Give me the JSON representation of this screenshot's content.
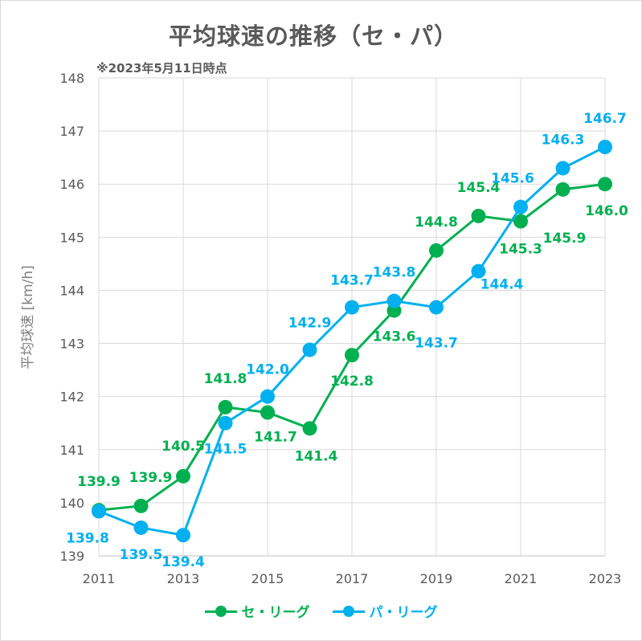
{
  "chart_data": {
    "type": "line",
    "title": "平均球速の推移（セ・パ）",
    "subtitle": "※2023年5月11日時点",
    "xlabel": "",
    "ylabel": "平均球速 [km/h]",
    "ylim": [
      139,
      148
    ],
    "xlim": [
      2011,
      2023
    ],
    "x": [
      2011,
      2012,
      2013,
      2014,
      2015,
      2016,
      2017,
      2018,
      2019,
      2020,
      2021,
      2022,
      2023
    ],
    "xticks": [
      "2011",
      "2013",
      "2015",
      "2017",
      "2019",
      "2021",
      "2023"
    ],
    "yticks": [
      "139",
      "140",
      "141",
      "142",
      "143",
      "144",
      "145",
      "146",
      "147",
      "148"
    ],
    "grid": true,
    "legend_position": "bottom",
    "series": [
      {
        "name": "セ・リーグ",
        "color": "#00b050",
        "values": [
          139.86,
          139.94,
          140.5,
          141.8,
          141.7,
          141.4,
          142.78,
          143.62,
          144.75,
          145.4,
          145.3,
          145.9,
          146.0
        ],
        "labels": [
          "139.9",
          "139.9",
          "140.5",
          "141.8",
          "141.7",
          "141.4",
          "142.8",
          "143.6",
          "144.8",
          "145.4",
          "145.3",
          "145.9",
          "146.0"
        ]
      },
      {
        "name": "パ・リーグ",
        "color": "#00b0f0",
        "values": [
          139.84,
          139.53,
          139.39,
          141.5,
          142.0,
          142.88,
          143.68,
          143.8,
          143.68,
          144.36,
          145.57,
          146.3,
          146.7
        ],
        "labels": [
          "139.8",
          "139.5",
          "139.4",
          "141.5",
          "142.0",
          "142.9",
          "143.7",
          "143.8",
          "143.7",
          "144.4",
          "145.6",
          "146.3",
          "146.7"
        ]
      }
    ]
  }
}
